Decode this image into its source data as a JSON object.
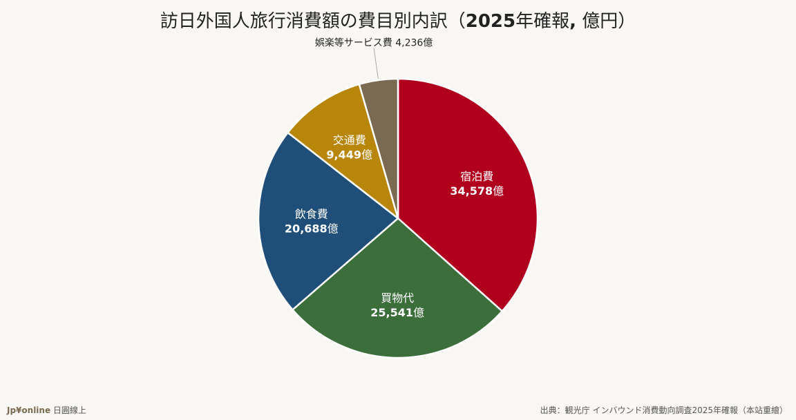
{
  "title": {
    "prefix": "訪日外国人旅行消費額の費目別内訳（",
    "bold": "2025",
    "mid": "年確報",
    "bold2": ",",
    "suffix": " 億円）"
  },
  "footer": {
    "brand": "Jp¥online",
    "brand_suffix": " 日圓線上",
    "source": "出典：観光庁 インバウンド消費動向調査2025年確報（本站重繪）"
  },
  "chart_data": {
    "type": "pie",
    "unit": "億",
    "start": "12 o'clock",
    "direction": "clockwise",
    "slices": [
      {
        "label": "宿泊費",
        "value": 34578,
        "value_text": "34,578",
        "color": "#b0001e",
        "label_position": "inside"
      },
      {
        "label": "買物代",
        "value": 25541,
        "value_text": "25,541",
        "color": "#3c6e3c",
        "label_position": "inside"
      },
      {
        "label": "飲食費",
        "value": 20688,
        "value_text": "20,688",
        "color": "#1f4e79",
        "label_position": "inside"
      },
      {
        "label": "交通費",
        "value": 9449,
        "value_text": "9,449",
        "color": "#b8860b",
        "label_position": "inside"
      },
      {
        "label": "娯楽等サービス費",
        "value": 4236,
        "value_text": "4,236",
        "color": "#7a6a52",
        "label_position": "outside"
      }
    ]
  }
}
